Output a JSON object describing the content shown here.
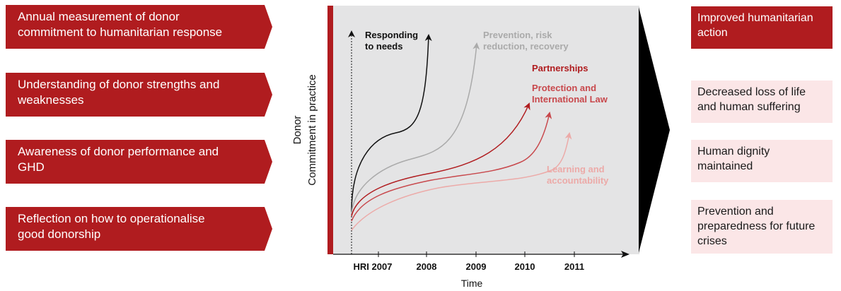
{
  "inputs": [
    "Annual measurement of donor commitment to humanitarian response",
    "Understanding of donor strengths and weaknesses",
    "Awareness of donor performance and GHD",
    "Reflection on how to operationalise good donorship"
  ],
  "outcomes": [
    "Improved humanitarian action",
    "Decreased loss of life and human suffering",
    "Human dignity maintained",
    "Prevention and preparedness for future crises"
  ],
  "colors": {
    "red": "#b01c1f",
    "panel": "#e4e4e5",
    "light_pink": "#fbe6e7",
    "black_curve": "#111111",
    "grey_curve": "#aaaaaa",
    "curve_dark_red": "#b01c1f",
    "curve_mid_red": "#c8484c",
    "curve_light_red": "#ecaaa8"
  },
  "chart_data": {
    "type": "line",
    "xlabel": "Time",
    "ylabel_line1": "Donor",
    "ylabel_line2": "Commitment in practice",
    "x_ticks": [
      "HRI 2007",
      "2008",
      "2009",
      "2010",
      "2011"
    ],
    "series": [
      {
        "name": "Responding to needs",
        "name_line1": "Responding",
        "name_line2": "to needs",
        "end_tick": "2008"
      },
      {
        "name": "Prevention, risk reduction, recovery",
        "name_line1": "Prevention, risk",
        "name_line2": "reduction, recovery",
        "end_tick": "2009"
      },
      {
        "name": "Partnerships",
        "name_line1": "Partnerships",
        "name_line2": "",
        "end_tick": "2010"
      },
      {
        "name": "Protection and International Law",
        "name_line1": "Protection and",
        "name_line2": "International Law",
        "end_tick": "2010-2011"
      },
      {
        "name": "Learning and accountability",
        "name_line1": "Learning and",
        "name_line2": "accountability",
        "end_tick": "2011"
      }
    ]
  }
}
